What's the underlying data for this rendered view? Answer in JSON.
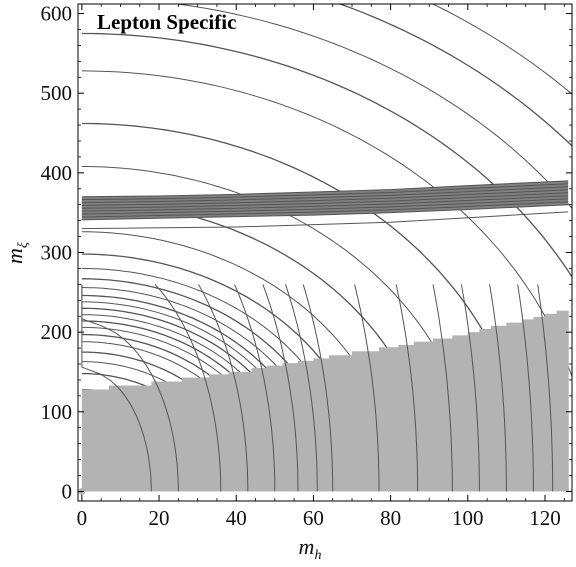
{
  "chart_data": {
    "type": "contour",
    "title": "Lepton Specific",
    "xlabel": "m",
    "xlabel_sub": "h",
    "ylabel": "m",
    "ylabel_sub": "ξ",
    "xlim": [
      -1,
      127
    ],
    "ylim": [
      -12,
      612
    ],
    "x_ticks": [
      0,
      20,
      40,
      60,
      80,
      100,
      120
    ],
    "y_ticks": [
      0,
      100,
      200,
      300,
      400,
      500,
      600
    ],
    "colors": {
      "excluded_region": "#b3b3b3",
      "band": "#808080",
      "band_edge": "#555555",
      "contour": "#555555",
      "frame": "#000000"
    },
    "contour_radii": [
      105,
      128,
      148,
      163,
      175,
      188,
      197,
      206,
      214,
      222,
      230,
      238,
      246,
      256,
      267,
      280,
      298,
      326,
      364,
      408,
      462,
      528,
      575,
      620,
      668,
      712
    ],
    "contour_x_intercepts": [
      18,
      25,
      36,
      43,
      50,
      56,
      61,
      65,
      77,
      87,
      96,
      103,
      110,
      117,
      122
    ],
    "excluded_steps": [
      {
        "x_start": 0,
        "x_end": 7,
        "y_top": 128
      },
      {
        "x_start": 7,
        "x_end": 18,
        "y_top": 133
      },
      {
        "x_start": 18,
        "x_end": 26,
        "y_top": 138
      },
      {
        "x_start": 26,
        "x_end": 33,
        "y_top": 143
      },
      {
        "x_start": 33,
        "x_end": 38,
        "y_top": 147
      },
      {
        "x_start": 38,
        "x_end": 44,
        "y_top": 150
      },
      {
        "x_start": 44,
        "x_end": 48,
        "y_top": 155
      },
      {
        "x_start": 48,
        "x_end": 52,
        "y_top": 158
      },
      {
        "x_start": 52,
        "x_end": 56,
        "y_top": 161
      },
      {
        "x_start": 56,
        "x_end": 60,
        "y_top": 164
      },
      {
        "x_start": 60,
        "x_end": 64,
        "y_top": 167
      },
      {
        "x_start": 64,
        "x_end": 70,
        "y_top": 171
      },
      {
        "x_start": 70,
        "x_end": 77,
        "y_top": 176
      },
      {
        "x_start": 77,
        "x_end": 82,
        "y_top": 181
      },
      {
        "x_start": 82,
        "x_end": 86,
        "y_top": 184
      },
      {
        "x_start": 86,
        "x_end": 91,
        "y_top": 188
      },
      {
        "x_start": 91,
        "x_end": 96,
        "y_top": 192
      },
      {
        "x_start": 96,
        "x_end": 100,
        "y_top": 196
      },
      {
        "x_start": 100,
        "x_end": 103,
        "y_top": 200
      },
      {
        "x_start": 103,
        "x_end": 106,
        "y_top": 204
      },
      {
        "x_start": 106,
        "x_end": 110,
        "y_top": 208
      },
      {
        "x_start": 110,
        "x_end": 114,
        "y_top": 212
      },
      {
        "x_start": 114,
        "x_end": 117,
        "y_top": 216
      },
      {
        "x_start": 117,
        "x_end": 120,
        "y_top": 219
      },
      {
        "x_start": 120,
        "x_end": 123,
        "y_top": 223
      },
      {
        "x_start": 123,
        "x_end": 126,
        "y_top": 227
      }
    ],
    "band": {
      "x": [
        0,
        20,
        40,
        60,
        80,
        100,
        126
      ],
      "y_lower": [
        341,
        343,
        345,
        347,
        350,
        354,
        360
      ],
      "y_upper": [
        370,
        371,
        373,
        376,
        379,
        384,
        390
      ]
    },
    "band_lower_edge": {
      "x": [
        0,
        40,
        80,
        126
      ],
      "y": [
        330,
        332,
        338,
        351
      ]
    }
  }
}
